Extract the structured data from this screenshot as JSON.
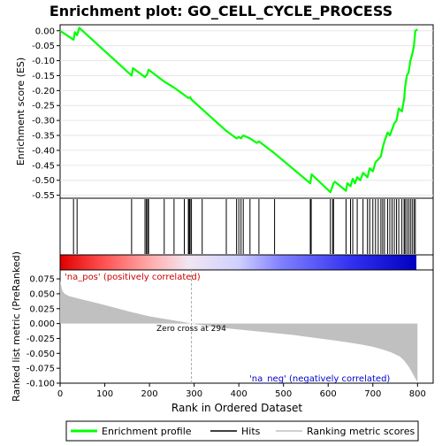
{
  "chart_data": {
    "type": "line",
    "title": "Enrichment plot: GO_CELL_CYCLE_PROCESS",
    "colors": {
      "enrichment_line": "#00ff00",
      "hit_line": "#000000",
      "metric_fill": "#c0c0c0",
      "positive_label": "#cc0000",
      "negative_label": "#0000cc",
      "zero_cross_line": "#aaaaaa"
    },
    "panels": {
      "es": {
        "ylabel": "Enrichment score (ES)",
        "ylim": [
          -0.56,
          0.02
        ],
        "yticks": [
          0.0,
          -0.05,
          -0.1,
          -0.15,
          -0.2,
          -0.25,
          -0.3,
          -0.35,
          -0.4,
          -0.45,
          -0.5,
          -0.55
        ],
        "ytick_labels": [
          "0.00",
          "-0.05",
          "-0.10",
          "-0.15",
          "-0.20",
          "-0.25",
          "-0.30",
          "-0.35",
          "-0.40",
          "-0.45",
          "-0.50",
          "-0.55"
        ],
        "series": [
          {
            "name": "Enrichment profile",
            "x": [
              0,
              30,
              33,
              38,
              43,
              160,
              163,
              190,
              195,
              198,
              233,
              255,
              278,
              287,
              291,
              294,
              320,
              372,
              395,
              400,
              405,
              410,
              425,
              440,
              445,
              480,
              560,
              563,
              605,
              612,
              615,
              640,
              643,
              650,
              655,
              660,
              665,
              672,
              678,
              688,
              693,
              700,
              706,
              712,
              718,
              722,
              726,
              733,
              738,
              743,
              748,
              753,
              758,
              765,
              770,
              772,
              776,
              780,
              784,
              788,
              792,
              795,
              800
            ],
            "y": [
              0.0,
              -0.03,
              -0.005,
              -0.015,
              0.01,
              -0.15,
              -0.125,
              -0.155,
              -0.145,
              -0.13,
              -0.17,
              -0.19,
              -0.215,
              -0.225,
              -0.222,
              -0.23,
              -0.265,
              -0.335,
              -0.36,
              -0.355,
              -0.36,
              -0.35,
              -0.36,
              -0.375,
              -0.37,
              -0.41,
              -0.51,
              -0.48,
              -0.54,
              -0.51,
              -0.505,
              -0.535,
              -0.51,
              -0.52,
              -0.495,
              -0.51,
              -0.49,
              -0.5,
              -0.475,
              -0.49,
              -0.46,
              -0.47,
              -0.44,
              -0.43,
              -0.42,
              -0.39,
              -0.37,
              -0.34,
              -0.35,
              -0.33,
              -0.31,
              -0.3,
              -0.26,
              -0.27,
              -0.23,
              -0.19,
              -0.15,
              -0.14,
              -0.1,
              -0.08,
              -0.05,
              0.0,
              0.005
            ]
          }
        ]
      },
      "hits": {
        "positions": [
          30,
          38,
          160,
          190,
          193,
          196,
          198,
          233,
          255,
          278,
          287,
          289,
          291,
          294,
          318,
          372,
          395,
          400,
          405,
          410,
          425,
          445,
          480,
          560,
          562,
          605,
          610,
          612,
          640,
          650,
          655,
          665,
          678,
          688,
          693,
          700,
          706,
          712,
          718,
          722,
          726,
          733,
          738,
          743,
          748,
          753,
          758,
          765,
          770,
          772,
          776,
          780,
          784,
          788,
          792,
          795
        ]
      },
      "metric": {
        "ylabel": "Ranked list metric (PreRanked)",
        "ylim": [
          -0.1,
          0.09
        ],
        "yticks": [
          0.075,
          0.05,
          0.025,
          0.0,
          -0.025,
          -0.05,
          -0.075,
          -0.1
        ],
        "ytick_labels": [
          "0.075",
          "0.050",
          "0.025",
          "0.000",
          "-0.025",
          "-0.050",
          "-0.075",
          "-0.100"
        ],
        "x": [
          0,
          2,
          5,
          10,
          20,
          40,
          80,
          120,
          160,
          200,
          240,
          280,
          294,
          320,
          360,
          400,
          440,
          480,
          520,
          560,
          600,
          640,
          680,
          700,
          720,
          740,
          760,
          770,
          780,
          790,
          795,
          800
        ],
        "y": [
          0.072,
          0.065,
          0.055,
          0.05,
          0.046,
          0.042,
          0.035,
          0.027,
          0.019,
          0.012,
          0.007,
          0.002,
          0.0,
          -0.003,
          -0.007,
          -0.01,
          -0.013,
          -0.016,
          -0.019,
          -0.023,
          -0.027,
          -0.031,
          -0.036,
          -0.039,
          -0.043,
          -0.048,
          -0.055,
          -0.062,
          -0.072,
          -0.085,
          -0.092,
          -0.098
        ]
      }
    },
    "xaxis": {
      "label": "Rank in Ordered Dataset",
      "xlim": [
        0,
        835
      ],
      "ticks": [
        0,
        100,
        200,
        300,
        400,
        500,
        600,
        700,
        800
      ],
      "tick_labels": [
        "0",
        "100",
        "200",
        "300",
        "400",
        "500",
        "600",
        "700",
        "800"
      ]
    },
    "annotations": {
      "positive": "'na_pos' (positively correlated)",
      "negative": "'na_neg' (negatively correlated)",
      "zero_cross": "Zero cross at 294",
      "zero_cross_x": 294
    },
    "legend": {
      "placement": "bottom",
      "entries": [
        "Enrichment profile",
        "Hits",
        "Ranking metric scores"
      ]
    }
  }
}
